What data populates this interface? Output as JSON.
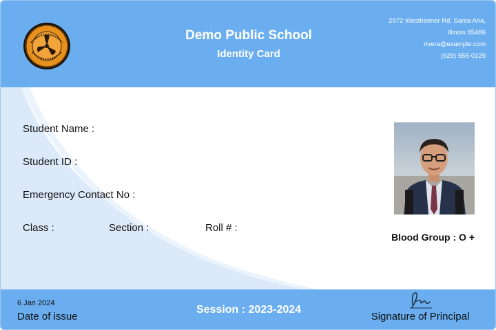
{
  "school": {
    "name": "Demo Public School",
    "card_type": "Identity Card",
    "address_line1": "2972 Westheimer Rd. Santa Ana,",
    "address_line2": "Illinois 85486",
    "email": "rivera@example.com",
    "phone": "(629) 555-0129",
    "logo_icon": "school-seal-icon"
  },
  "student": {
    "name_label": "Student Name :",
    "id_label": "Student ID :",
    "emergency_label": "Emergency Contact No :",
    "class_label": "Class :",
    "section_label": "Section :",
    "roll_label": "Roll # :",
    "blood_group": "Blood Group : O +",
    "photo": "student-photo"
  },
  "footer": {
    "issue_date": "6 Jan 2024",
    "issue_label": "Date of issue",
    "session": "Session : 2023-2024",
    "signature_label": "Signature of Principal",
    "signature_icon": "signature-icon"
  },
  "colors": {
    "header_blue": "#6aaef0",
    "swoosh_light": "#dbe9f9",
    "text_dark": "#111111"
  }
}
